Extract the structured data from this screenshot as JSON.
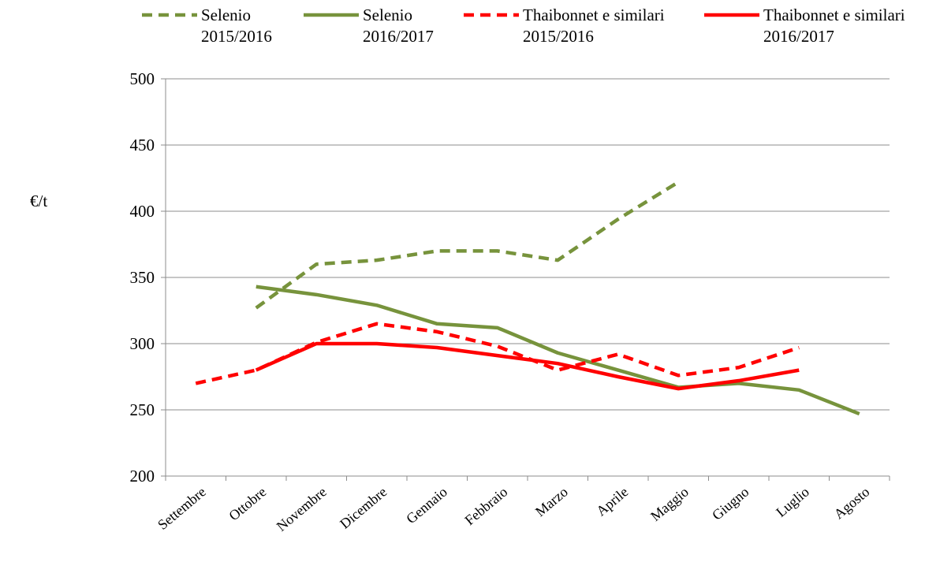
{
  "chart_data": {
    "type": "line",
    "ylabel": "€/t",
    "categories": [
      "Settembre",
      "Ottobre",
      "Novembre",
      "Dicembre",
      "Gennaio",
      "Febbraio",
      "Marzo",
      "Aprile",
      "Maggio",
      "Giugno",
      "Luglio",
      "Agosto"
    ],
    "series": [
      {
        "name": "Selenio\n2015/2016",
        "color": "#77933c",
        "dashed": true,
        "values": [
          null,
          327,
          360,
          363,
          370,
          370,
          363,
          394,
          422,
          null,
          null,
          null
        ]
      },
      {
        "name": "Selenio\n2016/2017",
        "color": "#77933c",
        "dashed": false,
        "values": [
          null,
          343,
          337,
          329,
          315,
          312,
          293,
          280,
          267,
          270,
          265,
          247
        ]
      },
      {
        "name": "Thaibonnet e similari\n2015/2016",
        "color": "#ff0000",
        "dashed": true,
        "values": [
          270,
          280,
          301,
          315,
          309,
          298,
          280,
          292,
          276,
          282,
          297,
          null
        ]
      },
      {
        "name": "Thaibonnet e similari\n2016/2017",
        "color": "#ff0000",
        "dashed": false,
        "values": [
          null,
          280,
          300,
          300,
          297,
          291,
          285,
          275,
          266,
          272,
          280,
          null
        ]
      }
    ],
    "ylim": [
      200,
      500
    ],
    "yticks": [
      200,
      250,
      300,
      350,
      400,
      450,
      500
    ],
    "grid": true,
    "legend": "top"
  }
}
